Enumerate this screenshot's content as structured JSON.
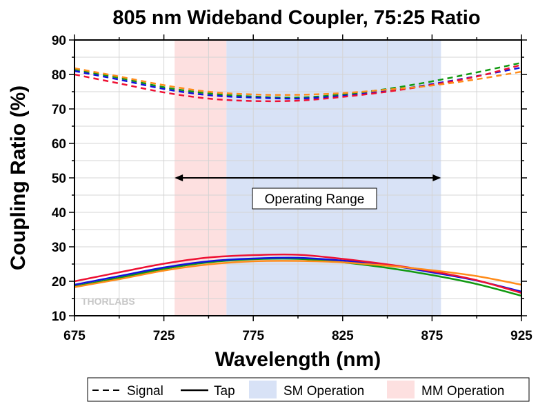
{
  "chart_data": {
    "type": "line",
    "title": "805 nm Wideband Coupler, 75:25 Ratio",
    "xlabel": "Wavelength (nm)",
    "ylabel": "Coupling Ratio (%)",
    "xlim": [
      675,
      925
    ],
    "ylim": [
      10,
      90
    ],
    "xticks": [
      675,
      725,
      775,
      825,
      875,
      925
    ],
    "yticks": [
      10,
      20,
      30,
      40,
      50,
      60,
      70,
      80,
      90
    ],
    "grid": true,
    "colors": {
      "green": "#119911",
      "blue": "#1111dd",
      "red": "#ee1133",
      "orange": "#ff8c1a",
      "sm": "#d8e2f6",
      "mm": "#fde0e0"
    },
    "regions": [
      {
        "name": "MM Operation",
        "x": [
          731,
          760
        ],
        "color": "#fde0e0"
      },
      {
        "name": "SM Operation",
        "x": [
          760,
          880
        ],
        "color": "#d8e2f6"
      }
    ],
    "annotation": {
      "text": "Operating Range",
      "arrow_x": [
        731,
        880
      ],
      "arrow_y": 50
    },
    "watermark": "THORLABS",
    "legend": {
      "position": "bottom",
      "items": [
        {
          "label": "Signal",
          "style": "dashed"
        },
        {
          "label": "Tap",
          "style": "solid"
        },
        {
          "label": "SM Operation",
          "style": "patch",
          "color": "#d8e2f6"
        },
        {
          "label": "MM Operation",
          "style": "patch",
          "color": "#fde0e0"
        }
      ]
    },
    "series": [
      {
        "color": "#119911",
        "style": "dashed",
        "x": [
          675,
          700,
          725,
          750,
          775,
          800,
          825,
          850,
          875,
          900,
          925
        ],
        "values": [
          81.5,
          79.0,
          76.3,
          74.5,
          73.6,
          73.3,
          74.2,
          75.8,
          78.0,
          80.6,
          83.4
        ]
      },
      {
        "color": "#1111dd",
        "style": "dashed",
        "x": [
          675,
          700,
          725,
          750,
          775,
          800,
          825,
          850,
          875,
          900,
          925
        ],
        "values": [
          81.0,
          78.5,
          75.8,
          74.0,
          73.3,
          73.0,
          73.8,
          75.2,
          77.2,
          79.5,
          82.0
        ]
      },
      {
        "color": "#ee1133",
        "style": "dashed",
        "x": [
          675,
          700,
          725,
          750,
          775,
          800,
          825,
          850,
          875,
          900,
          925
        ],
        "values": [
          80.0,
          77.4,
          74.8,
          73.0,
          72.3,
          72.4,
          73.5,
          75.0,
          77.0,
          79.4,
          82.8
        ]
      },
      {
        "color": "#ff8c1a",
        "style": "dashed",
        "x": [
          675,
          700,
          725,
          750,
          775,
          800,
          825,
          850,
          875,
          900,
          925
        ],
        "values": [
          81.8,
          79.4,
          76.9,
          75.0,
          74.2,
          74.1,
          74.6,
          75.6,
          76.8,
          78.6,
          80.8
        ]
      },
      {
        "color": "#119911",
        "style": "solid",
        "x": [
          675,
          700,
          725,
          750,
          775,
          800,
          825,
          850,
          875,
          900,
          925
        ],
        "values": [
          18.5,
          21.0,
          23.6,
          25.5,
          26.4,
          26.5,
          25.5,
          23.9,
          21.8,
          19.2,
          15.8
        ]
      },
      {
        "color": "#1111dd",
        "style": "solid",
        "x": [
          675,
          700,
          725,
          750,
          775,
          800,
          825,
          850,
          875,
          900,
          925
        ],
        "values": [
          19.0,
          21.5,
          24.0,
          25.8,
          26.6,
          26.8,
          26.0,
          24.7,
          22.6,
          20.2,
          17.0
        ]
      },
      {
        "color": "#ee1133",
        "style": "solid",
        "x": [
          675,
          700,
          725,
          750,
          775,
          800,
          825,
          850,
          875,
          900,
          925
        ],
        "values": [
          20.0,
          22.6,
          25.1,
          26.9,
          27.6,
          27.7,
          26.5,
          24.9,
          22.9,
          20.3,
          16.6
        ]
      },
      {
        "color": "#ff8c1a",
        "style": "solid",
        "x": [
          675,
          700,
          725,
          750,
          775,
          800,
          825,
          850,
          875,
          900,
          925
        ],
        "values": [
          18.3,
          20.6,
          23.1,
          24.9,
          25.8,
          25.9,
          25.5,
          24.5,
          23.2,
          21.5,
          19.0
        ]
      }
    ]
  }
}
